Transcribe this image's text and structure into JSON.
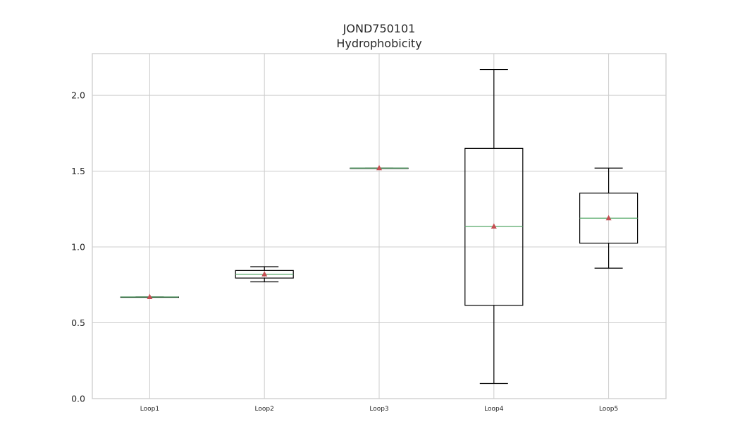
{
  "chart_data": {
    "type": "box",
    "title": "JOND750101",
    "subtitle": "Hydrophobicity",
    "xlabel": "",
    "ylabel": "",
    "categories": [
      "Loop1",
      "Loop2",
      "Loop3",
      "Loop4",
      "Loop5"
    ],
    "boxes": [
      {
        "label": "Loop1",
        "whislo": 0.67,
        "q1": 0.67,
        "med": 0.67,
        "q3": 0.67,
        "whishi": 0.67,
        "mean": 0.67
      },
      {
        "label": "Loop2",
        "whislo": 0.77,
        "q1": 0.795,
        "med": 0.82,
        "q3": 0.845,
        "whishi": 0.87,
        "mean": 0.82
      },
      {
        "label": "Loop3",
        "whislo": 1.52,
        "q1": 1.52,
        "med": 1.52,
        "q3": 1.52,
        "whishi": 1.52,
        "mean": 1.52
      },
      {
        "label": "Loop4",
        "whislo": 0.1,
        "q1": 0.615,
        "med": 1.135,
        "q3": 1.65,
        "whishi": 2.17,
        "mean": 1.135
      },
      {
        "label": "Loop5",
        "whislo": 0.86,
        "q1": 1.025,
        "med": 1.19,
        "q3": 1.355,
        "whishi": 1.52,
        "mean": 1.19
      }
    ],
    "ylim": [
      0.0,
      2.275
    ],
    "yticks": [
      0.0,
      0.5,
      1.0,
      1.5,
      2.0
    ],
    "ytick_labels": [
      "0.0",
      "0.5",
      "1.0",
      "1.5",
      "2.0"
    ],
    "grid": true,
    "legend": "none",
    "colors": {
      "box": "#000000",
      "median": "#55a868",
      "mean_marker": "#c44e52",
      "grid": "#cccccc",
      "axes_frame": "#cccccc",
      "background": "#ffffff"
    }
  }
}
